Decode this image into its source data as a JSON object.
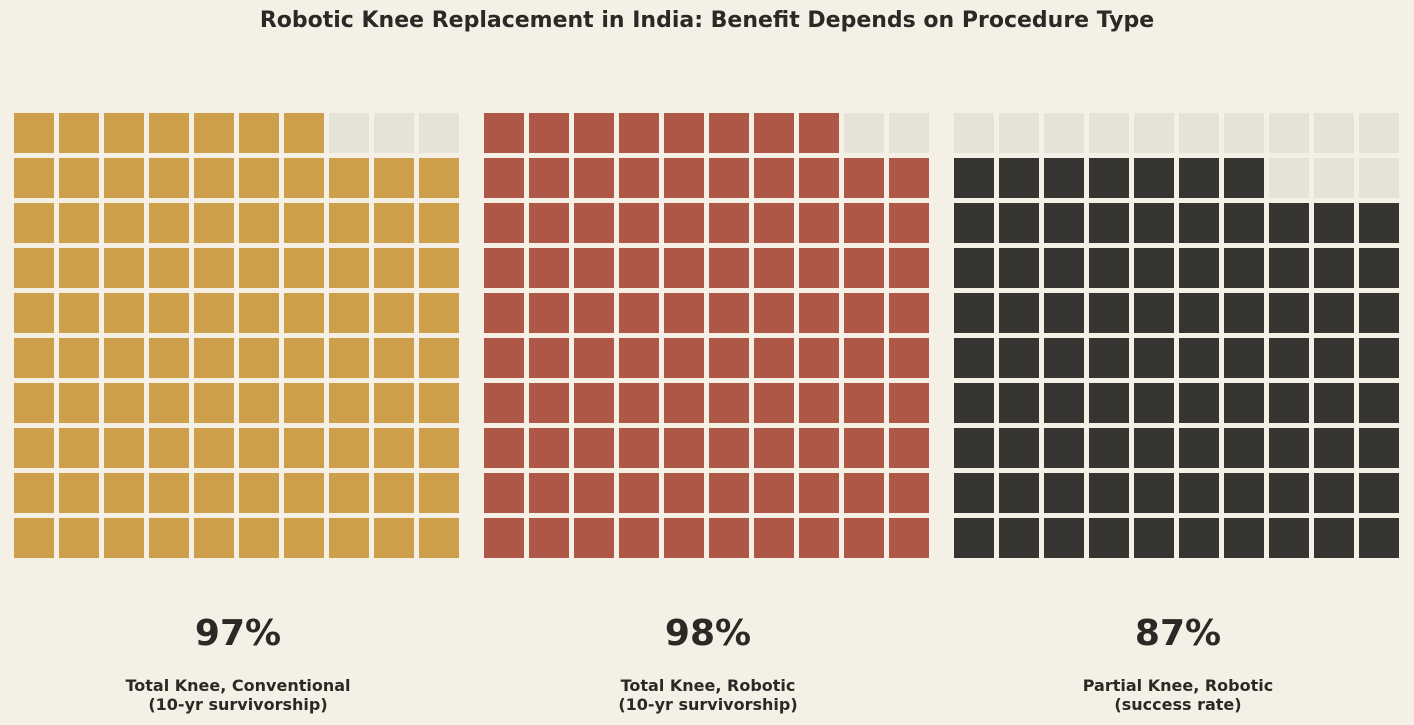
{
  "chart_data": {
    "type": "waffle",
    "title": "Robotic Knee Replacement in India: Benefit Depends on Procedure Type",
    "empty_color": "#e5e2d7",
    "grid": {
      "rows": 10,
      "cols": 10
    },
    "panels": [
      {
        "value": 97,
        "value_label": "97%",
        "label_line1": "Total Knee, Conventional",
        "label_line2": "(10-yr survivorship)",
        "color": "#cd9f4a"
      },
      {
        "value": 98,
        "value_label": "98%",
        "label_line1": "Total Knee, Robotic",
        "label_line2": "(10-yr survivorship)",
        "color": "#af5746"
      },
      {
        "value": 87,
        "value_label": "87%",
        "label_line1": "Partial Knee, Robotic",
        "label_line2": "(success rate)",
        "color": "#363532"
      }
    ]
  }
}
